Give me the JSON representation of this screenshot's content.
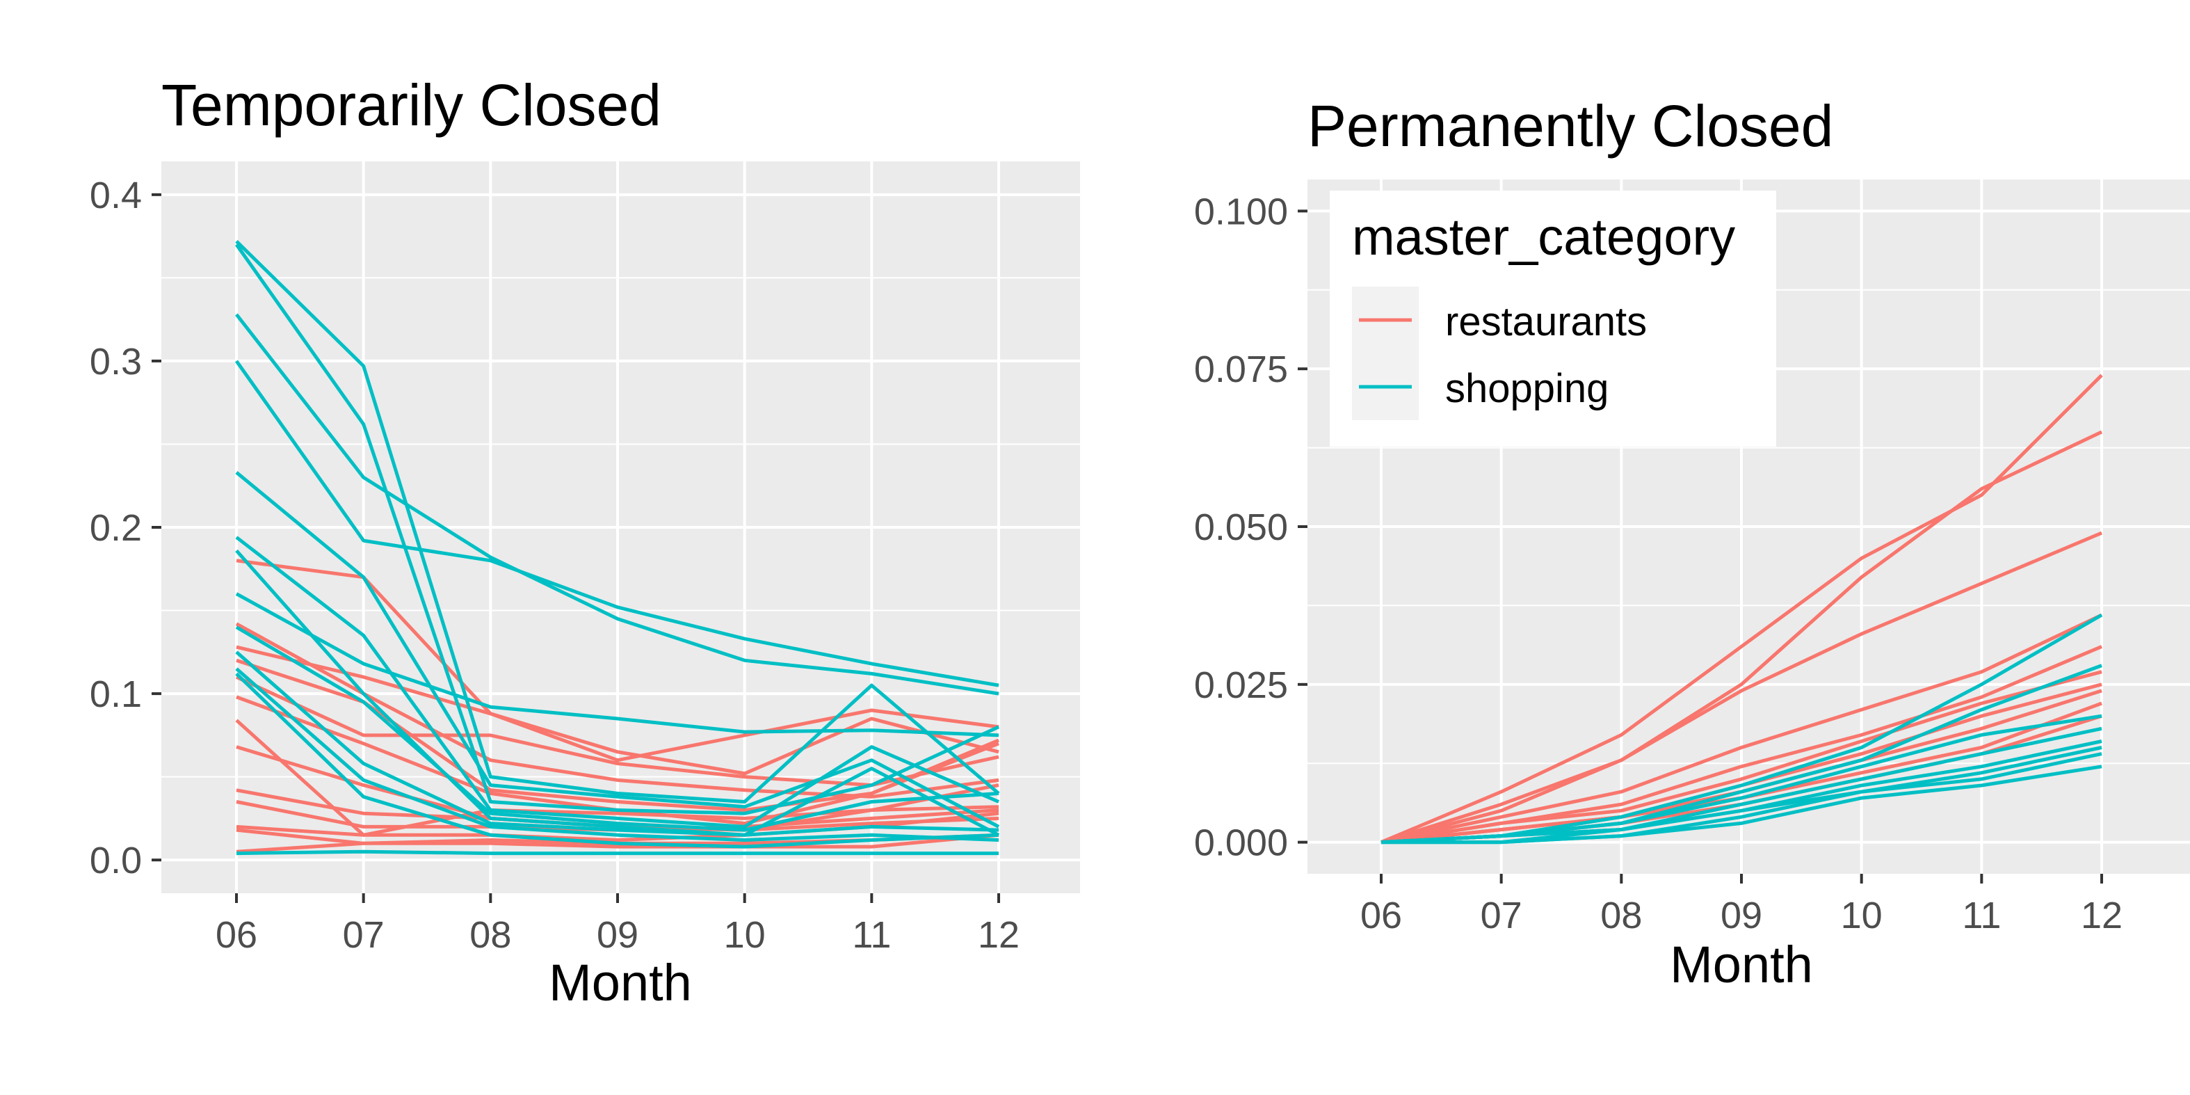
{
  "colors": {
    "restaurants": "#F8766D",
    "shopping": "#00BFC4",
    "panel_bg": "#EBEBEB",
    "grid": "#FFFFFF",
    "tick_text": "#4D4D4D",
    "tick_mark": "#333333"
  },
  "legend": {
    "title": "master_category",
    "items": [
      {
        "key": "restaurants",
        "label": "restaurants"
      },
      {
        "key": "shopping",
        "label": "shopping"
      }
    ]
  },
  "chart_data": [
    {
      "type": "line",
      "title": "Temporarily Closed",
      "xlabel": "Month",
      "ylabel": "",
      "x": [
        "06",
        "07",
        "08",
        "09",
        "10",
        "11",
        "12"
      ],
      "ylim": [
        -0.02,
        0.42
      ],
      "yticks": [
        0.0,
        0.1,
        0.2,
        0.3,
        0.4
      ],
      "ytick_labels": [
        "0.0",
        "0.1",
        "0.2",
        "0.3",
        "0.4"
      ],
      "grid": true,
      "series": [
        {
          "category": "restaurants",
          "values": [
            0.18,
            0.17,
            0.088,
            0.06,
            0.075,
            0.09,
            0.08
          ]
        },
        {
          "category": "restaurants",
          "values": [
            0.142,
            0.1,
            0.06,
            0.048,
            0.042,
            0.038,
            0.048
          ]
        },
        {
          "category": "restaurants",
          "values": [
            0.128,
            0.11,
            0.088,
            0.065,
            0.052,
            0.085,
            0.065
          ]
        },
        {
          "category": "restaurants",
          "values": [
            0.11,
            0.075,
            0.075,
            0.058,
            0.05,
            0.045,
            0.062
          ]
        },
        {
          "category": "restaurants",
          "values": [
            0.098,
            0.07,
            0.04,
            0.03,
            0.022,
            0.04,
            0.072
          ]
        },
        {
          "category": "restaurants",
          "values": [
            0.084,
            0.015,
            0.03,
            0.028,
            0.025,
            0.03,
            0.032
          ]
        },
        {
          "category": "restaurants",
          "values": [
            0.068,
            0.045,
            0.025,
            0.02,
            0.018,
            0.022,
            0.025
          ]
        },
        {
          "category": "restaurants",
          "values": [
            0.042,
            0.028,
            0.025,
            0.02,
            0.018,
            0.03,
            0.045
          ]
        },
        {
          "category": "restaurants",
          "values": [
            0.035,
            0.02,
            0.02,
            0.018,
            0.02,
            0.025,
            0.03
          ]
        },
        {
          "category": "restaurants",
          "values": [
            0.02,
            0.015,
            0.015,
            0.012,
            0.015,
            0.02,
            0.028
          ]
        },
        {
          "category": "restaurants",
          "values": [
            0.018,
            0.01,
            0.012,
            0.01,
            0.01,
            0.012,
            0.015
          ]
        },
        {
          "category": "restaurants",
          "values": [
            0.005,
            0.01,
            0.01,
            0.008,
            0.008,
            0.008,
            0.015
          ]
        },
        {
          "category": "restaurants",
          "values": [
            0.12,
            0.095,
            0.042,
            0.035,
            0.03,
            0.04,
            0.07
          ]
        },
        {
          "category": "shopping",
          "values": [
            0.37,
            0.262,
            0.035,
            0.03,
            0.028,
            0.045,
            0.08
          ]
        },
        {
          "category": "shopping",
          "values": [
            0.372,
            0.297,
            0.05,
            0.04,
            0.035,
            0.105,
            0.04
          ]
        },
        {
          "category": "shopping",
          "values": [
            0.328,
            0.23,
            0.182,
            0.145,
            0.12,
            0.112,
            0.1
          ]
        },
        {
          "category": "shopping",
          "values": [
            0.3,
            0.192,
            0.18,
            0.152,
            0.133,
            0.118,
            0.105
          ]
        },
        {
          "category": "shopping",
          "values": [
            0.233,
            0.17,
            0.045,
            0.038,
            0.032,
            0.06,
            0.02
          ]
        },
        {
          "category": "shopping",
          "values": [
            0.194,
            0.135,
            0.03,
            0.025,
            0.02,
            0.068,
            0.035
          ]
        },
        {
          "category": "shopping",
          "values": [
            0.186,
            0.1,
            0.025,
            0.02,
            0.015,
            0.055,
            0.015
          ]
        },
        {
          "category": "shopping",
          "values": [
            0.16,
            0.118,
            0.092,
            0.085,
            0.077,
            0.078,
            0.075
          ]
        },
        {
          "category": "shopping",
          "values": [
            0.14,
            0.095,
            0.028,
            0.022,
            0.018,
            0.035,
            0.04
          ]
        },
        {
          "category": "shopping",
          "values": [
            0.125,
            0.058,
            0.022,
            0.018,
            0.015,
            0.02,
            0.018
          ]
        },
        {
          "category": "shopping",
          "values": [
            0.115,
            0.048,
            0.02,
            0.015,
            0.012,
            0.015,
            0.012
          ]
        },
        {
          "category": "shopping",
          "values": [
            0.112,
            0.038,
            0.015,
            0.01,
            0.008,
            0.012,
            0.015
          ]
        },
        {
          "category": "shopping",
          "values": [
            0.004,
            0.005,
            0.004,
            0.004,
            0.004,
            0.004,
            0.004
          ]
        }
      ]
    },
    {
      "type": "line",
      "title": "Permanently Closed",
      "xlabel": "Month",
      "ylabel": "",
      "x": [
        "06",
        "07",
        "08",
        "09",
        "10",
        "11",
        "12"
      ],
      "ylim": [
        -0.005,
        0.105
      ],
      "yticks": [
        0.0,
        0.025,
        0.05,
        0.075,
        0.1
      ],
      "ytick_labels": [
        "0.000",
        "0.025",
        "0.050",
        "0.075",
        "0.100"
      ],
      "grid": true,
      "legend_position": "top-left (inside)",
      "series": [
        {
          "category": "restaurants",
          "values": [
            0.0,
            0.008,
            0.017,
            0.031,
            0.045,
            0.055,
            0.074
          ]
        },
        {
          "category": "restaurants",
          "values": [
            0.0,
            0.006,
            0.013,
            0.025,
            0.042,
            0.056,
            0.065
          ]
        },
        {
          "category": "restaurants",
          "values": [
            0.0,
            0.005,
            0.013,
            0.024,
            0.033,
            0.041,
            0.049
          ]
        },
        {
          "category": "restaurants",
          "values": [
            0.0,
            0.004,
            0.008,
            0.015,
            0.021,
            0.027,
            0.036
          ]
        },
        {
          "category": "restaurants",
          "values": [
            0.0,
            0.003,
            0.006,
            0.012,
            0.017,
            0.023,
            0.031
          ]
        },
        {
          "category": "restaurants",
          "values": [
            0.0,
            0.003,
            0.005,
            0.01,
            0.016,
            0.022,
            0.027
          ]
        },
        {
          "category": "restaurants",
          "values": [
            0.0,
            0.002,
            0.004,
            0.009,
            0.014,
            0.02,
            0.025
          ]
        },
        {
          "category": "restaurants",
          "values": [
            0.0,
            0.002,
            0.004,
            0.008,
            0.013,
            0.018,
            0.024
          ]
        },
        {
          "category": "restaurants",
          "values": [
            0.0,
            0.002,
            0.004,
            0.007,
            0.011,
            0.015,
            0.022
          ]
        },
        {
          "category": "restaurants",
          "values": [
            0.0,
            0.001,
            0.003,
            0.006,
            0.01,
            0.014,
            0.02
          ]
        },
        {
          "category": "shopping",
          "values": [
            0.0,
            0.001,
            0.004,
            0.009,
            0.015,
            0.025,
            0.036
          ]
        },
        {
          "category": "shopping",
          "values": [
            0.0,
            0.001,
            0.003,
            0.008,
            0.013,
            0.021,
            0.028
          ]
        },
        {
          "category": "shopping",
          "values": [
            0.0,
            0.001,
            0.003,
            0.007,
            0.012,
            0.017,
            0.02
          ]
        },
        {
          "category": "shopping",
          "values": [
            0.0,
            0.001,
            0.002,
            0.006,
            0.01,
            0.014,
            0.018
          ]
        },
        {
          "category": "shopping",
          "values": [
            0.0,
            0.001,
            0.002,
            0.005,
            0.009,
            0.012,
            0.016
          ]
        },
        {
          "category": "shopping",
          "values": [
            0.0,
            0.0,
            0.002,
            0.005,
            0.008,
            0.011,
            0.015
          ]
        },
        {
          "category": "shopping",
          "values": [
            0.0,
            0.0,
            0.001,
            0.004,
            0.008,
            0.01,
            0.014
          ]
        },
        {
          "category": "shopping",
          "values": [
            0.0,
            0.0,
            0.001,
            0.003,
            0.007,
            0.009,
            0.012
          ]
        }
      ]
    }
  ]
}
